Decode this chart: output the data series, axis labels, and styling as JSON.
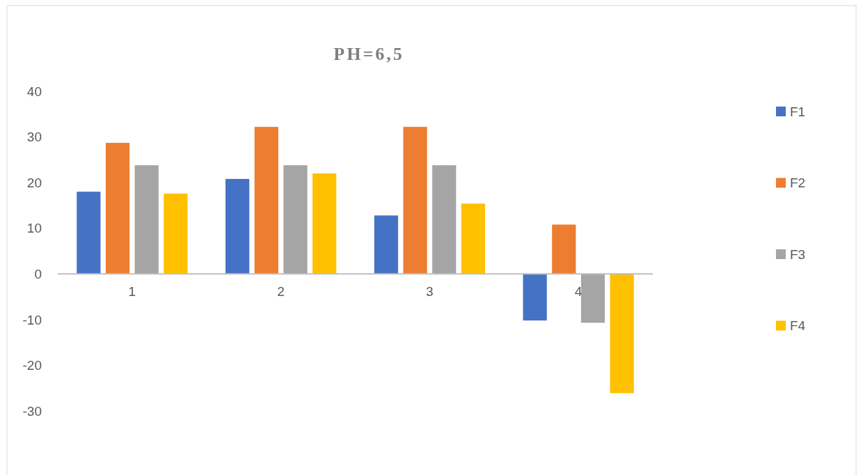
{
  "chart_data": {
    "type": "bar",
    "title": "PH=6,5",
    "categories": [
      "1",
      "2",
      "3",
      "4"
    ],
    "series": [
      {
        "name": "F1",
        "color": "#4472c4",
        "values": [
          18,
          20.8,
          12.8,
          -10.2
        ]
      },
      {
        "name": "F2",
        "color": "#ed7d31",
        "values": [
          28.7,
          32.2,
          32.2,
          10.8
        ]
      },
      {
        "name": "F3",
        "color": "#a5a5a5",
        "values": [
          23.8,
          23.8,
          23.8,
          -10.7
        ]
      },
      {
        "name": "F4",
        "color": "#ffc000",
        "values": [
          17.6,
          22,
          15.4,
          -26.1
        ]
      }
    ],
    "ylim": [
      -30,
      40
    ],
    "yticks": [
      -30,
      -20,
      -10,
      0,
      10,
      20,
      30,
      40
    ],
    "grid": false,
    "legend": "right"
  }
}
